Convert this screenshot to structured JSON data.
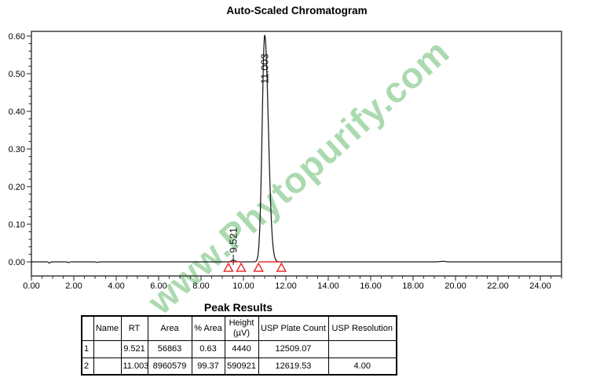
{
  "watermark": "www.Phytopurify.com",
  "colors": {
    "watermark_green": "#a5d7aa",
    "integration_red": "#e53030",
    "trace_black": "#1a1a1a",
    "axis_gray": "#555555"
  },
  "chart_data": {
    "type": "line",
    "title": "Auto-Scaled Chromatogram",
    "xlabel": "",
    "ylabel": "",
    "xlim": [
      0,
      25
    ],
    "ylim": [
      -0.0375,
      0.6125
    ],
    "grid": false,
    "legend": null,
    "x_major_ticks": [
      0,
      2,
      4,
      6,
      8,
      10,
      12,
      14,
      16,
      18,
      20,
      22,
      24
    ],
    "x_tick_labels": [
      "0.00",
      "2.00",
      "4.00",
      "6.00",
      "8.00",
      "10.00",
      "12.00",
      "14.00",
      "16.00",
      "18.00",
      "20.00",
      "22.00",
      "24.00"
    ],
    "x_minor_step": 0.5,
    "y_major_ticks": [
      0.0,
      0.1,
      0.2,
      0.3,
      0.4,
      0.5,
      0.6
    ],
    "y_tick_labels": [
      "0.00",
      "0.10",
      "0.20",
      "0.30",
      "0.40",
      "0.50",
      "0.60"
    ],
    "y_minor_step": 0.02,
    "peaks": [
      {
        "rt": 9.521,
        "label": "9.521",
        "height_au": 0.0048,
        "sigma_l": 0.09,
        "sigma_r": 0.09,
        "int_start": 9.29,
        "int_end": 9.89
      },
      {
        "rt": 11.003,
        "label": "11.003",
        "height_au": 0.602,
        "sigma_l": 0.12,
        "sigma_r": 0.17,
        "int_start": 10.71,
        "int_end": 11.79
      }
    ],
    "baseline_blips": [
      {
        "t": 0.85,
        "amp": -0.003,
        "sigma": 0.04
      },
      {
        "t": 1.75,
        "amp": -0.0018,
        "sigma": 0.04
      },
      {
        "t": 3.1,
        "amp": -0.0014,
        "sigma": 0.05
      },
      {
        "t": 19.4,
        "amp": 0.0014,
        "sigma": 0.12
      }
    ]
  },
  "table": {
    "title": "Peak Results",
    "headers": {
      "index": "",
      "name": "Name",
      "rt": "RT",
      "area": "Area",
      "pct_area": "% Area",
      "height_line1": "Height",
      "height_line2": "(µV)",
      "plate_count": "USP Plate Count",
      "resolution": "USP Resolution"
    },
    "rows": [
      {
        "index": "1",
        "name": "",
        "rt": "9.521",
        "area": "56863",
        "pct_area": "0.63",
        "height": "4440",
        "plate_count": "12509.07",
        "resolution": ""
      },
      {
        "index": "2",
        "name": "",
        "rt": "11.003",
        "area": "8960579",
        "pct_area": "99.37",
        "height": "590921",
        "plate_count": "12619.53",
        "resolution": "4.00"
      }
    ]
  }
}
